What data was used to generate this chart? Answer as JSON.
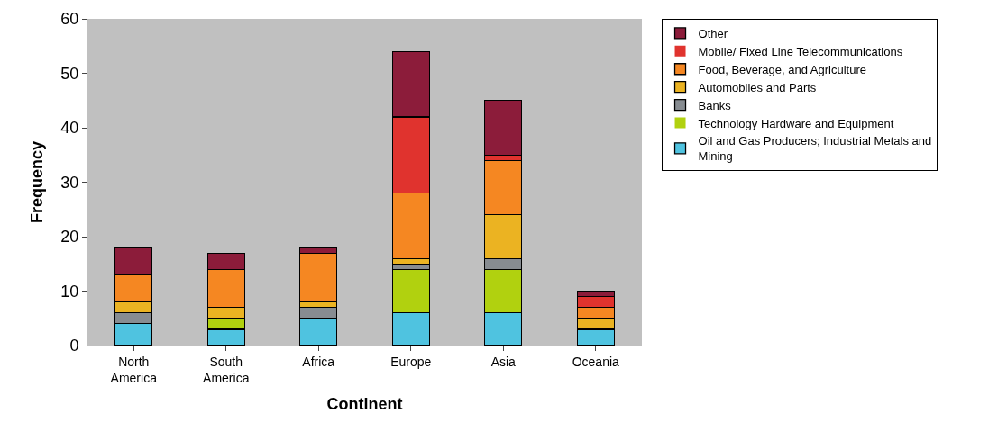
{
  "chart_data": {
    "type": "bar",
    "stacked": true,
    "xlabel": "Continent",
    "ylabel": "Frequency",
    "categories": [
      "North America",
      "South America",
      "Africa",
      "Europe",
      "Asia",
      "Oceania"
    ],
    "series": [
      {
        "name": "Oil and Gas Producers; Industrial Metals and Mining",
        "color": "#4fc3e0",
        "values": [
          4,
          3,
          5,
          6,
          6,
          3
        ]
      },
      {
        "name": "Technology Hardware and Equipment",
        "color": "#b1d10f",
        "values": [
          0,
          2,
          0,
          8,
          8,
          0
        ]
      },
      {
        "name": "Banks",
        "color": "#878c91",
        "values": [
          2,
          0,
          2,
          1,
          2,
          0
        ]
      },
      {
        "name": "Automobiles and Parts",
        "color": "#ebb322",
        "values": [
          2,
          2,
          1,
          1,
          8,
          2
        ]
      },
      {
        "name": "Food, Beverage, and Agriculture",
        "color": "#f58722",
        "values": [
          5,
          7,
          9,
          12,
          10,
          2
        ]
      },
      {
        "name": "Mobile/ Fixed Line Telecommunications",
        "color": "#e0332e",
        "values": [
          0,
          0,
          0,
          14,
          1,
          2
        ]
      },
      {
        "name": "Other",
        "color": "#8c1c3a",
        "values": [
          5,
          3,
          1,
          12,
          10,
          1
        ]
      }
    ],
    "ylim": [
      0,
      60
    ],
    "yticks": [
      0,
      10,
      20,
      30,
      40,
      50,
      60
    ],
    "grid": false,
    "legend": "right"
  }
}
